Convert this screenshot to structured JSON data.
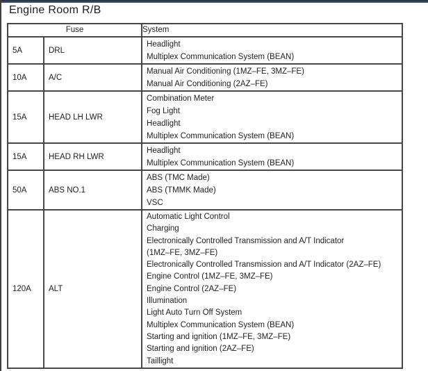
{
  "page": {
    "title": "Engine Room R/B"
  },
  "table": {
    "header": {
      "fuse": "Fuse",
      "system": "System"
    },
    "rows": [
      {
        "amp": "5A",
        "name": "DRL",
        "systems": [
          "Headlight",
          "Multiplex Communication System (BEAN)"
        ]
      },
      {
        "amp": "10A",
        "name": "A/C",
        "systems": [
          "Manual Air Conditioning (1MZ–FE, 3MZ–FE)",
          "Manual Air Conditioning (2AZ–FE)"
        ]
      },
      {
        "amp": "15A",
        "name": "HEAD LH LWR",
        "systems": [
          "Combination Meter",
          "Fog Light",
          "Headlight",
          "Multiplex Communication System (BEAN)"
        ]
      },
      {
        "amp": "15A",
        "name": "HEAD RH LWR",
        "systems": [
          "Headlight",
          "Multiplex Communication System (BEAN)"
        ]
      },
      {
        "amp": "50A",
        "name": "ABS NO.1",
        "systems": [
          "ABS (TMC Made)",
          "ABS (TMMK Made)",
          "VSC"
        ]
      },
      {
        "amp": "120A",
        "name": "ALT",
        "systems": [
          "Automatic Light Control",
          "Charging",
          "Electronically Controlled Transmission and A/T Indicator\n(1MZ–FE, 3MZ–FE)",
          "Electronically Controlled Transmission and A/T Indicator (2AZ–FE)",
          "Engine Control (1MZ–FE, 3MZ–FE)",
          "Engine Control (2AZ–FE)",
          "Illumination",
          "Light Auto Turn Off System",
          "Multiplex Communication System (BEAN)",
          "Starting and ignition (1MZ–FE, 3MZ–FE)",
          "Starting and ignition (2AZ–FE)",
          "Taillight"
        ]
      }
    ]
  },
  "colors": {
    "top_bar": "#3d5266",
    "top_bar_edge": "#242f3a",
    "table_border": "#474747",
    "text": "#1f1f1f",
    "left_edge": "#3f3f3f"
  }
}
